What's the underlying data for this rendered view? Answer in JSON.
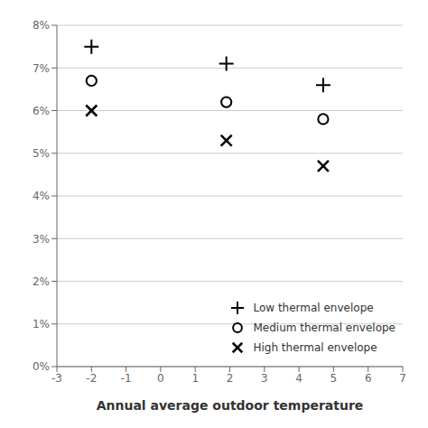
{
  "chart_data": {
    "type": "scatter",
    "xlabel": "Annual average outdoor temperature",
    "xlim": [
      -3,
      7
    ],
    "ylim": [
      0,
      8
    ],
    "xticks": [
      -3,
      -2,
      -1,
      0,
      1,
      2,
      3,
      4,
      5,
      6,
      7
    ],
    "yticks": [
      {
        "value": 0,
        "label": "0%"
      },
      {
        "value": 1,
        "label": "1%"
      },
      {
        "value": 2,
        "label": "2%"
      },
      {
        "value": 3,
        "label": "3%"
      },
      {
        "value": 4,
        "label": "4%"
      },
      {
        "value": 5,
        "label": "5%"
      },
      {
        "value": 6,
        "label": "6%"
      },
      {
        "value": 7,
        "label": "7%"
      },
      {
        "value": 8,
        "label": "8%"
      }
    ],
    "grid": true,
    "legend": "lower right",
    "color": "black",
    "series": [
      {
        "name": "Low thermal envelope",
        "marker": "+",
        "x": [
          -2.0,
          1.9,
          4.7
        ],
        "values": [
          7.5,
          7.1,
          6.6
        ]
      },
      {
        "name": "Medium thermal envelope",
        "marker": "o",
        "x": [
          -2.0,
          1.9,
          4.7
        ],
        "values": [
          6.7,
          6.2,
          5.8
        ]
      },
      {
        "name": "High thermal envelope",
        "marker": "x",
        "x": [
          -2.0,
          1.9,
          4.7
        ],
        "values": [
          6.0,
          5.3,
          4.7
        ]
      }
    ]
  }
}
